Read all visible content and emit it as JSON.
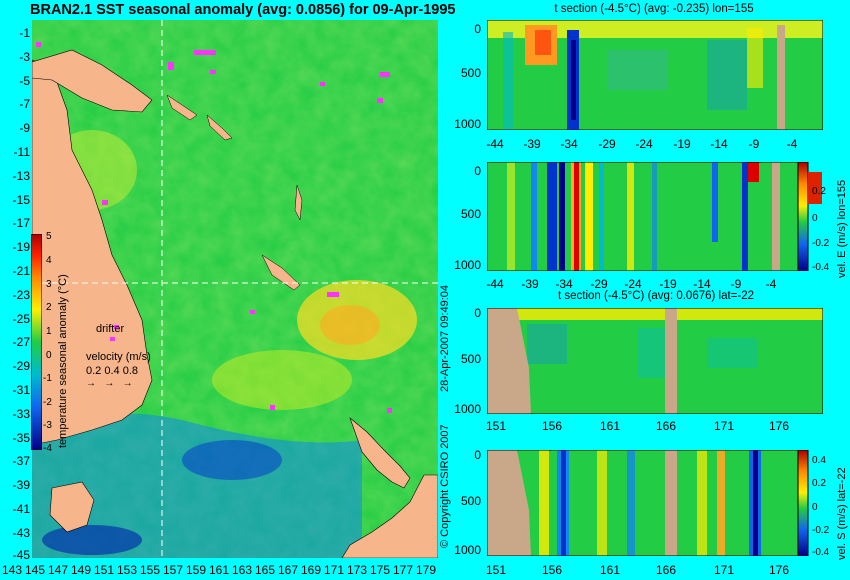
{
  "map": {
    "title": "BRAN2.1 SST seasonal anomaly (avg: 0.0856) for 09-Apr-1995",
    "lat_ticks": [
      "-1",
      "-3",
      "-5",
      "-7",
      "-9",
      "-11",
      "-13",
      "-15",
      "-17",
      "-19",
      "-21",
      "-23",
      "-25",
      "-27",
      "-29",
      "-31",
      "-33",
      "-35",
      "-37",
      "-39",
      "-41",
      "-43",
      "-45"
    ],
    "lon_ticks": [
      "143",
      "145",
      "147",
      "149",
      "151",
      "153",
      "155",
      "157",
      "159",
      "161",
      "163",
      "165",
      "167",
      "169",
      "171",
      "173",
      "175",
      "177",
      "179"
    ],
    "colorbar": {
      "label": "temperature seasonal anomaly (°C)",
      "ticks": [
        "5",
        "4",
        "3",
        "2",
        "1",
        "0",
        "-1",
        "-2",
        "-3",
        "-4"
      ]
    },
    "legend": {
      "drifter": "drifter",
      "velocity_title": "velocity (m/s)",
      "velocity_values": "0.2 0.4 0.8"
    },
    "colors": {
      "land": "#f7b58b",
      "ocean_base": "#22cc44",
      "drifter": "#ff33ff"
    }
  },
  "sections": {
    "top": {
      "title": "t section (-4.5°C) (avg: -0.235) lon=155",
      "x_ticks": [
        "-44",
        "-39",
        "-34",
        "-29",
        "-24",
        "-19",
        "-14",
        "-9",
        "-4"
      ],
      "y_ticks": [
        "0",
        "500",
        "1000"
      ]
    },
    "top_vel": {
      "x_ticks": [
        "-44",
        "-39",
        "-34",
        "-29",
        "-24",
        "-19",
        "-14",
        "-9",
        "-4"
      ],
      "y_ticks": [
        "0",
        "500",
        "1000"
      ],
      "colorbar_label": "vel. E (m/s) lon=155",
      "colorbar_ticks": [
        "0.2",
        "0",
        "-0.2",
        "-0.4"
      ]
    },
    "bottom": {
      "title": "t section (-4.5°C) (avg: 0.0676) lat=-22",
      "x_ticks": [
        "151",
        "156",
        "161",
        "166",
        "171",
        "176"
      ],
      "y_ticks": [
        "0",
        "500",
        "1000"
      ]
    },
    "bottom_vel": {
      "x_ticks": [
        "151",
        "156",
        "161",
        "166",
        "171",
        "176"
      ],
      "y_ticks": [
        "0",
        "500",
        "1000"
      ],
      "colorbar_label": "vel. S (m/s) lat=-22",
      "colorbar_ticks": [
        "0.4",
        "0.2",
        "0",
        "-0.2",
        "-0.4"
      ]
    }
  },
  "side_texts": {
    "date": "28-Apr-2007 09:49:04",
    "copyright": "© Copyright CSIRO 2007"
  }
}
